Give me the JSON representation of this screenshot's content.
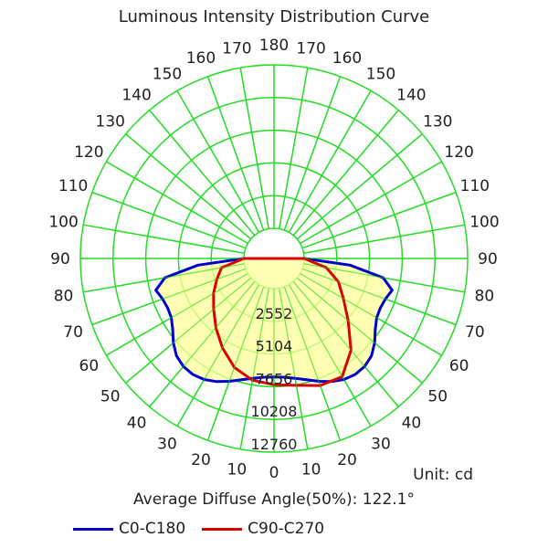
{
  "chart_data": {
    "type": "polar",
    "title": "Luminous Intensity Distribution Curve",
    "unit_label": "Unit: cd",
    "average_label": "Average Diffuse Angle(50%): 122.1°",
    "angle_labels": [
      "0",
      "10",
      "20",
      "30",
      "40",
      "50",
      "60",
      "70",
      "80",
      "90",
      "100",
      "110",
      "120",
      "130",
      "140",
      "150",
      "160",
      "170",
      "180"
    ],
    "radial_labels": [
      "2552",
      "5104",
      "7656",
      "10208",
      "12760"
    ],
    "radial_range": [
      0,
      12760
    ],
    "grid": true,
    "series": [
      {
        "name": "C0-C180",
        "color": "#0000cc",
        "fill": "#ffff99",
        "angles": [
          0,
          5,
          10,
          15,
          20,
          25,
          30,
          35,
          40,
          45,
          50,
          55,
          60,
          65,
          70,
          75,
          80,
          85,
          90
        ],
        "values": [
          6900,
          6950,
          7150,
          7450,
          7850,
          8250,
          8550,
          8700,
          8650,
          8400,
          7900,
          7300,
          6900,
          6800,
          6900,
          7200,
          6300,
          3600,
          0
        ]
      },
      {
        "name": "C90-C270",
        "color": "#dd0000",
        "fill": "none",
        "angles": [
          -90,
          -80,
          -70,
          -60,
          -50,
          -40,
          -30,
          -20,
          -10,
          0,
          10,
          20,
          30,
          40,
          50,
          60,
          70,
          80,
          90
        ],
        "values": [
          0,
          1800,
          2400,
          3100,
          3800,
          4700,
          5700,
          6700,
          7300,
          7500,
          7700,
          8200,
          8300,
          7000,
          5200,
          3900,
          3000,
          1800,
          0
        ]
      }
    ],
    "legend_position": "bottom-left"
  }
}
